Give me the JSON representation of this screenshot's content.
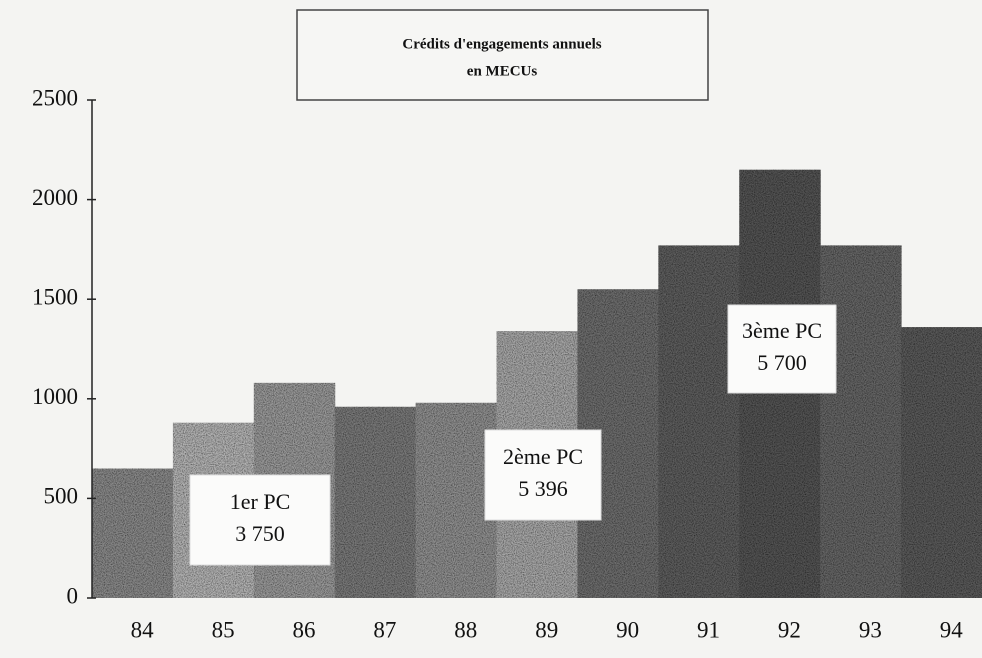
{
  "chart_data": {
    "type": "bar",
    "title": [
      "Crédits d'engagements annuels",
      "en MECUs"
    ],
    "categories": [
      "84",
      "85",
      "86",
      "87",
      "88",
      "89",
      "90",
      "91",
      "92",
      "93",
      "94"
    ],
    "values": [
      650,
      880,
      1080,
      960,
      980,
      1340,
      1550,
      1770,
      2150,
      1770,
      1360
    ],
    "colors": [
      "#8a8a8a",
      "#b4b4b4",
      "#9a9a9a",
      "#7a7a7a",
      "#909090",
      "#a8a8a8",
      "#6e6e6e",
      "#5e5e5e",
      "#545454",
      "#666666",
      "#5a5a5a"
    ],
    "ylim": [
      0,
      2500
    ],
    "yticks": [
      0,
      500,
      1000,
      1500,
      2000,
      2500
    ],
    "annotations": [
      {
        "text": [
          "1er PC",
          "3 750"
        ]
      },
      {
        "text": [
          "2ème PC",
          "5 396"
        ]
      },
      {
        "text": [
          "3ème PC",
          "5 700"
        ]
      }
    ]
  }
}
